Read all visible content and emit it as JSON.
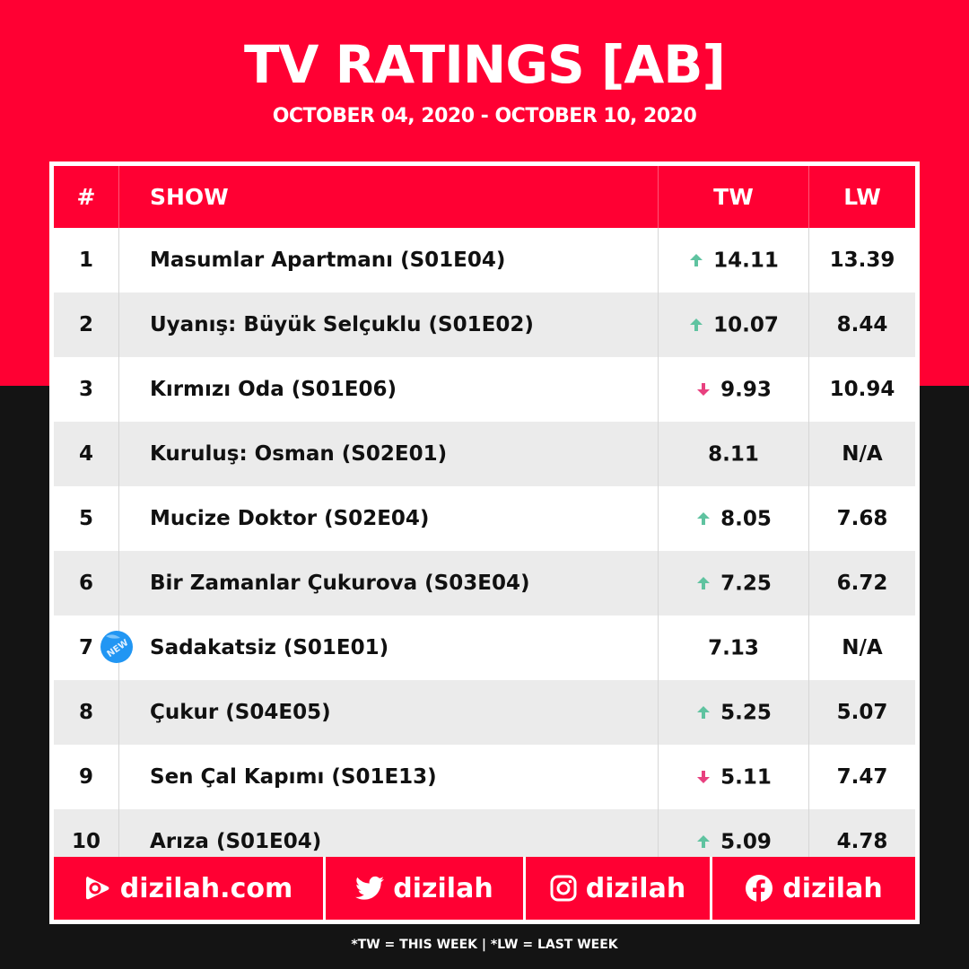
{
  "title": "TV RATINGS [AB]",
  "subtitle": "OCTOBER 04, 2020 - OCTOBER 10, 2020",
  "colors": {
    "brand_red": "#ff0033",
    "dark_bg": "#141414",
    "up": "#5fc3a0",
    "down": "#e8407f",
    "new_badge": "#2196f3"
  },
  "headers": {
    "rank": "#",
    "show": "SHOW",
    "tw": "TW",
    "lw": "LW"
  },
  "rows": [
    {
      "rank": "1",
      "show": "Masumlar Apartmanı (S01E04)",
      "tw": "14.11",
      "lw": "13.39",
      "trend": "up"
    },
    {
      "rank": "2",
      "show": "Uyanış: Büyük Selçuklu (S01E02)",
      "tw": "10.07",
      "lw": "8.44",
      "trend": "up"
    },
    {
      "rank": "3",
      "show": "Kırmızı Oda (S01E06)",
      "tw": "9.93",
      "lw": "10.94",
      "trend": "down"
    },
    {
      "rank": "4",
      "show": "Kuruluş: Osman (S02E01)",
      "tw": "8.11",
      "lw": "N/A",
      "trend": "none"
    },
    {
      "rank": "5",
      "show": "Mucize Doktor (S02E04)",
      "tw": "8.05",
      "lw": "7.68",
      "trend": "up"
    },
    {
      "rank": "6",
      "show": "Bir Zamanlar Çukurova (S03E04)",
      "tw": "7.25",
      "lw": "6.72",
      "trend": "up"
    },
    {
      "rank": "7",
      "show": "Sadakatsiz (S01E01)",
      "tw": "7.13",
      "lw": "N/A",
      "trend": "none",
      "badge": "NEW"
    },
    {
      "rank": "8",
      "show": "Çukur (S04E05)",
      "tw": "5.25",
      "lw": "5.07",
      "trend": "up"
    },
    {
      "rank": "9",
      "show": "Sen Çal Kapımı (S01E13)",
      "tw": "5.11",
      "lw": "7.47",
      "trend": "down"
    },
    {
      "rank": "10",
      "show": "Arıza (S01E04)",
      "tw": "5.09",
      "lw": "4.78",
      "trend": "up"
    }
  ],
  "footer": [
    {
      "icon": "website-play-icon",
      "label": "dizilah.com"
    },
    {
      "icon": "twitter-icon",
      "label": "dizilah"
    },
    {
      "icon": "instagram-icon",
      "label": "dizilah"
    },
    {
      "icon": "facebook-icon",
      "label": "dizilah"
    }
  ],
  "note": "*TW = THIS WEEK | *LW = LAST WEEK"
}
